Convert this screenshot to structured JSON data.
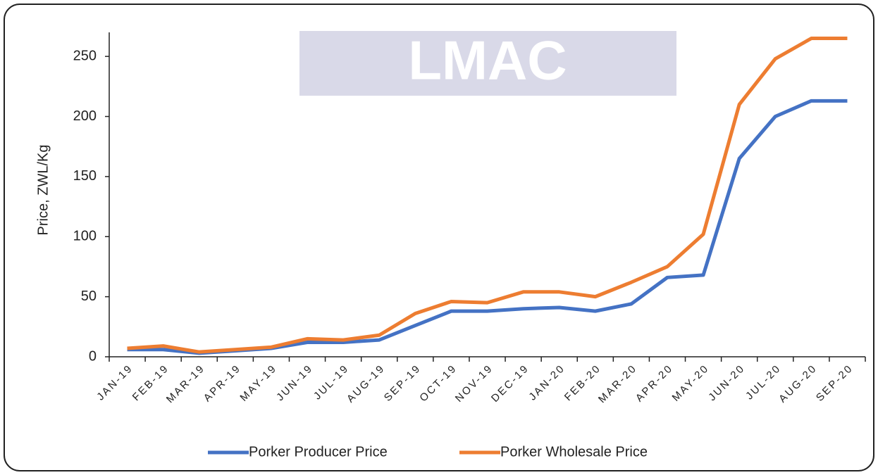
{
  "chart_data": {
    "type": "line",
    "logo": "LMAC",
    "y_label": "Price, ZWL/Kg",
    "categories": [
      "JAN-19",
      "FEB-19",
      "MAR-19",
      "APR-19",
      "MAY-19",
      "JUN-19",
      "JUL-19",
      "AUG-19",
      "SEP-19",
      "OCT-19",
      "NOV-19",
      "DEC-19",
      "JAN-20",
      "FEB-20",
      "MAR-20",
      "APR-20",
      "MAY-20",
      "JUN-20",
      "JUL-20",
      "AUG-20",
      "SEP-20"
    ],
    "series": [
      {
        "name": "Porker Producer Price",
        "color": "#4472c4",
        "values": [
          6,
          6,
          3,
          5,
          7,
          12,
          12,
          14,
          26,
          38,
          38,
          40,
          41,
          38,
          44,
          66,
          68,
          165,
          200,
          213,
          213
        ]
      },
      {
        "name": "Porker Wholesale Price",
        "color": "#ed7d31",
        "values": [
          7,
          9,
          4,
          6,
          8,
          15,
          14,
          18,
          36,
          46,
          45,
          54,
          54,
          50,
          62,
          75,
          102,
          210,
          248,
          265,
          265
        ]
      }
    ],
    "ylim": [
      0,
      270
    ],
    "yticks": [
      0,
      50,
      100,
      150,
      200,
      250
    ],
    "grid": false,
    "legend": "bottom"
  }
}
